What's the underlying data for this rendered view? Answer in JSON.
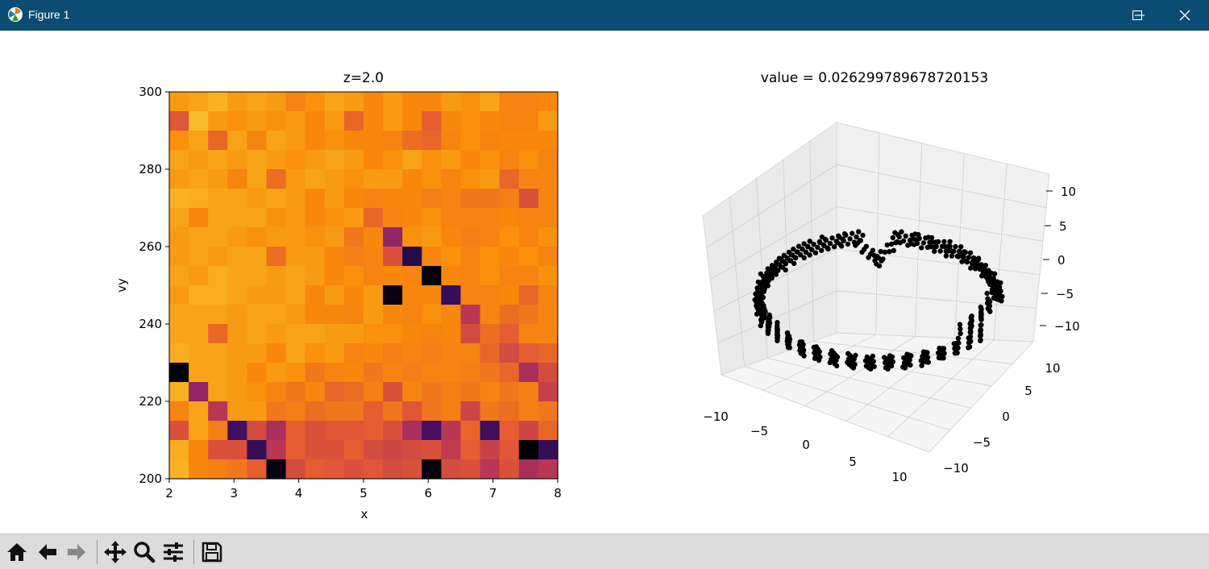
{
  "window": {
    "title": "Figure 1"
  },
  "toolbar": {
    "buttons": [
      "home-icon",
      "back-arrow-icon",
      "forward-arrow-icon",
      "pan-icon",
      "zoom-icon",
      "configure-subplots-icon",
      "save-icon"
    ]
  },
  "chart_data": [
    {
      "type": "heatmap",
      "title": "z=2.0",
      "xlabel": "x",
      "ylabel": "vy",
      "xlim": [
        2,
        8
      ],
      "ylim": [
        200,
        300
      ],
      "xticks": [
        "2",
        "3",
        "4",
        "5",
        "6",
        "7",
        "8"
      ],
      "yticks": [
        "200",
        "220",
        "240",
        "260",
        "280",
        "300"
      ],
      "colormap": "inferno",
      "grid_rows_top_to_bottom": [
        [
          0.78,
          0.8,
          0.83,
          0.78,
          0.8,
          0.78,
          0.73,
          0.76,
          0.8,
          0.78,
          0.74,
          0.78,
          0.74,
          0.74,
          0.78,
          0.76,
          0.8,
          0.73,
          0.73,
          0.74
        ],
        [
          0.62,
          0.85,
          0.78,
          0.76,
          0.78,
          0.76,
          0.78,
          0.74,
          0.78,
          0.66,
          0.74,
          0.78,
          0.74,
          0.64,
          0.74,
          0.76,
          0.74,
          0.73,
          0.73,
          0.78
        ],
        [
          0.76,
          0.8,
          0.66,
          0.8,
          0.73,
          0.8,
          0.78,
          0.74,
          0.76,
          0.74,
          0.74,
          0.73,
          0.68,
          0.66,
          0.73,
          0.76,
          0.73,
          0.74,
          0.74,
          0.74
        ],
        [
          0.8,
          0.78,
          0.8,
          0.78,
          0.8,
          0.78,
          0.76,
          0.78,
          0.8,
          0.78,
          0.74,
          0.76,
          0.8,
          0.76,
          0.78,
          0.74,
          0.76,
          0.73,
          0.76,
          0.73
        ],
        [
          0.78,
          0.8,
          0.78,
          0.73,
          0.8,
          0.68,
          0.78,
          0.8,
          0.78,
          0.76,
          0.78,
          0.78,
          0.74,
          0.76,
          0.73,
          0.76,
          0.78,
          0.66,
          0.73,
          0.73
        ],
        [
          0.83,
          0.82,
          0.8,
          0.8,
          0.78,
          0.8,
          0.78,
          0.74,
          0.78,
          0.74,
          0.73,
          0.74,
          0.74,
          0.72,
          0.73,
          0.7,
          0.7,
          0.72,
          0.6,
          0.73
        ],
        [
          0.8,
          0.74,
          0.8,
          0.8,
          0.8,
          0.76,
          0.78,
          0.74,
          0.76,
          0.78,
          0.66,
          0.73,
          0.74,
          0.76,
          0.73,
          0.73,
          0.73,
          0.74,
          0.73,
          0.73
        ],
        [
          0.78,
          0.8,
          0.8,
          0.78,
          0.76,
          0.78,
          0.78,
          0.76,
          0.78,
          0.7,
          0.74,
          0.4,
          0.76,
          0.78,
          0.74,
          0.72,
          0.73,
          0.76,
          0.73,
          0.76
        ],
        [
          0.78,
          0.8,
          0.78,
          0.8,
          0.8,
          0.68,
          0.78,
          0.78,
          0.74,
          0.72,
          0.73,
          0.6,
          0.14,
          0.73,
          0.76,
          0.73,
          0.76,
          0.74,
          0.76,
          0.73
        ],
        [
          0.8,
          0.78,
          0.82,
          0.8,
          0.8,
          0.78,
          0.8,
          0.78,
          0.74,
          0.76,
          0.73,
          0.74,
          0.73,
          0.0,
          0.74,
          0.73,
          0.76,
          0.73,
          0.73,
          0.76
        ],
        [
          0.78,
          0.82,
          0.82,
          0.8,
          0.78,
          0.78,
          0.8,
          0.74,
          0.78,
          0.74,
          0.78,
          0.03,
          0.74,
          0.74,
          0.18,
          0.73,
          0.73,
          0.74,
          0.66,
          0.73
        ],
        [
          0.8,
          0.8,
          0.8,
          0.78,
          0.8,
          0.8,
          0.78,
          0.74,
          0.74,
          0.73,
          0.78,
          0.74,
          0.73,
          0.76,
          0.74,
          0.5,
          0.73,
          0.68,
          0.7,
          0.73
        ],
        [
          0.8,
          0.8,
          0.66,
          0.78,
          0.8,
          0.78,
          0.8,
          0.8,
          0.78,
          0.78,
          0.76,
          0.76,
          0.74,
          0.73,
          0.74,
          0.58,
          0.68,
          0.64,
          0.73,
          0.73
        ],
        [
          0.82,
          0.8,
          0.8,
          0.78,
          0.78,
          0.74,
          0.8,
          0.76,
          0.78,
          0.73,
          0.74,
          0.72,
          0.73,
          0.72,
          0.73,
          0.73,
          0.66,
          0.58,
          0.64,
          0.66
        ],
        [
          0.0,
          0.8,
          0.8,
          0.78,
          0.74,
          0.78,
          0.76,
          0.7,
          0.73,
          0.74,
          0.7,
          0.73,
          0.72,
          0.73,
          0.73,
          0.72,
          0.7,
          0.66,
          0.46,
          0.58
        ],
        [
          0.82,
          0.4,
          0.8,
          0.78,
          0.76,
          0.73,
          0.7,
          0.74,
          0.66,
          0.68,
          0.72,
          0.6,
          0.73,
          0.7,
          0.72,
          0.7,
          0.73,
          0.7,
          0.72,
          0.54
        ],
        [
          0.73,
          0.8,
          0.5,
          0.78,
          0.78,
          0.7,
          0.72,
          0.68,
          0.7,
          0.7,
          0.64,
          0.7,
          0.62,
          0.7,
          0.72,
          0.56,
          0.7,
          0.68,
          0.72,
          0.7
        ],
        [
          0.6,
          0.8,
          0.72,
          0.2,
          0.58,
          0.46,
          0.64,
          0.6,
          0.62,
          0.62,
          0.64,
          0.6,
          0.46,
          0.22,
          0.5,
          0.66,
          0.2,
          0.64,
          0.56,
          0.66
        ],
        [
          0.82,
          0.74,
          0.6,
          0.6,
          0.18,
          0.5,
          0.64,
          0.6,
          0.6,
          0.64,
          0.58,
          0.56,
          0.58,
          0.6,
          0.52,
          0.64,
          0.54,
          0.62,
          0.0,
          0.18
        ],
        [
          0.83,
          0.74,
          0.72,
          0.7,
          0.64,
          0.03,
          0.58,
          0.64,
          0.62,
          0.6,
          0.62,
          0.58,
          0.6,
          0.02,
          0.58,
          0.6,
          0.5,
          0.6,
          0.46,
          0.5
        ]
      ]
    },
    {
      "type": "scatter",
      "projection": "3d",
      "title": "value = 0.026299789678720153",
      "xlim": [
        -10,
        10
      ],
      "ylim": [
        -10,
        10
      ],
      "zlim": [
        -10,
        10
      ],
      "xticks": [
        "−10",
        "−5",
        "0",
        "5",
        "10"
      ],
      "yticks": [
        "−10",
        "−5",
        "0",
        "5",
        "10"
      ],
      "zticks": [
        "−10",
        "−5",
        "0",
        "5",
        "10"
      ],
      "grid": true,
      "marker_color": "#000000"
    }
  ]
}
